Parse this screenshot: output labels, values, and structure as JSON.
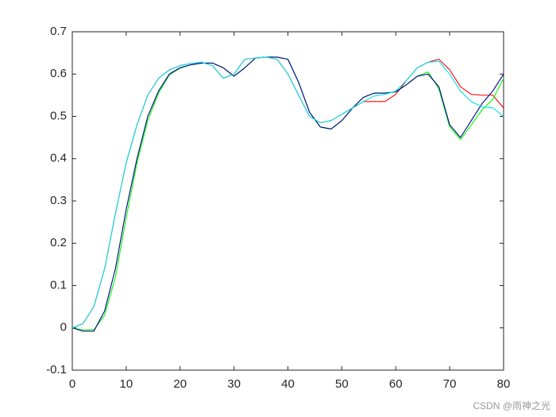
{
  "chart_data": {
    "type": "line",
    "x": [
      0,
      2,
      4,
      6,
      8,
      10,
      12,
      14,
      16,
      18,
      20,
      22,
      24,
      26,
      28,
      30,
      32,
      34,
      36,
      38,
      40,
      42,
      44,
      46,
      48,
      50,
      52,
      54,
      56,
      58,
      60,
      62,
      64,
      66,
      68,
      70,
      72,
      74,
      76,
      78,
      80
    ],
    "series": [
      {
        "color": "#ff0000",
        "values": [
          0,
          0.01,
          0.05,
          0.14,
          0.27,
          0.39,
          0.48,
          0.55,
          0.59,
          0.61,
          0.62,
          0.625,
          0.628,
          0.62,
          0.59,
          0.6,
          0.635,
          0.638,
          0.64,
          0.635,
          0.6,
          0.55,
          0.5,
          0.485,
          0.49,
          0.505,
          0.52,
          0.535,
          0.535,
          0.535,
          0.552,
          0.585,
          0.615,
          0.628,
          0.635,
          0.61,
          0.57,
          0.552,
          0.55,
          0.55,
          0.52
        ]
      },
      {
        "color": "#00ff00",
        "values": [
          0,
          -0.005,
          -0.005,
          0.03,
          0.12,
          0.26,
          0.39,
          0.49,
          0.555,
          0.598,
          0.614,
          0.622,
          0.626,
          0.626,
          0.615,
          0.595,
          0.615,
          0.638,
          0.64,
          0.64,
          0.635,
          0.58,
          0.51,
          0.475,
          0.47,
          0.49,
          0.52,
          0.545,
          0.555,
          0.555,
          0.558,
          0.575,
          0.595,
          0.605,
          0.565,
          0.475,
          0.445,
          0.48,
          0.515,
          0.54,
          0.59
        ]
      },
      {
        "color": "#00008b",
        "values": [
          0,
          -0.008,
          -0.008,
          0.04,
          0.14,
          0.28,
          0.4,
          0.5,
          0.56,
          0.6,
          0.615,
          0.622,
          0.626,
          0.626,
          0.615,
          0.595,
          0.615,
          0.638,
          0.64,
          0.64,
          0.635,
          0.58,
          0.51,
          0.475,
          0.47,
          0.49,
          0.52,
          0.545,
          0.555,
          0.555,
          0.558,
          0.575,
          0.595,
          0.6,
          0.57,
          0.48,
          0.45,
          0.49,
          0.53,
          0.56,
          0.6
        ]
      },
      {
        "color": "#00e5ee",
        "values": [
          0,
          0.01,
          0.05,
          0.14,
          0.27,
          0.39,
          0.48,
          0.55,
          0.59,
          0.61,
          0.62,
          0.625,
          0.628,
          0.62,
          0.59,
          0.6,
          0.635,
          0.638,
          0.64,
          0.635,
          0.6,
          0.55,
          0.5,
          0.485,
          0.49,
          0.505,
          0.52,
          0.535,
          0.548,
          0.552,
          0.56,
          0.585,
          0.615,
          0.628,
          0.63,
          0.6,
          0.56,
          0.535,
          0.522,
          0.52,
          0.5
        ]
      }
    ],
    "xlim": [
      0,
      80
    ],
    "xticks": [
      0,
      10,
      20,
      30,
      40,
      50,
      60,
      70,
      80
    ],
    "ylim": [
      -0.1,
      0.7
    ],
    "yticks": [
      -0.1,
      0,
      0.1,
      0.2,
      0.3,
      0.4,
      0.5,
      0.6,
      0.7
    ],
    "watermark": "CSDN @雨神之光"
  }
}
